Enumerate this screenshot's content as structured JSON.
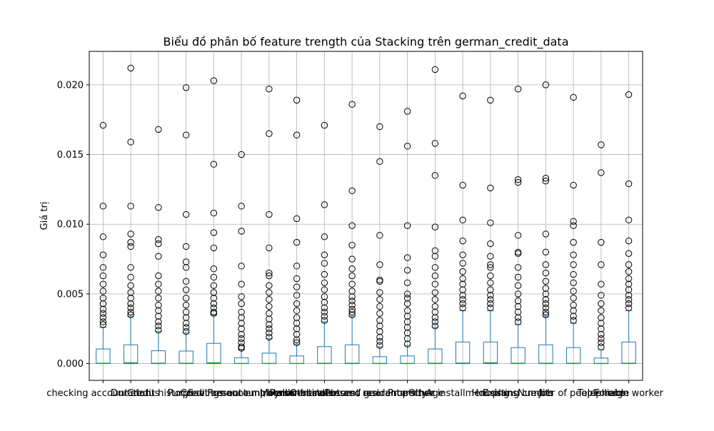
{
  "chart_data": {
    "type": "boxplot",
    "title": "Biểu đồ phân bố feature trength của Stacking trên german_credit_data",
    "xlabel": "",
    "ylabel": "Giá trị",
    "ylim": [
      -0.0012,
      0.0224
    ],
    "yticks": [
      "0.000",
      "0.005",
      "0.010",
      "0.015",
      "0.020"
    ],
    "grid": true,
    "colors": {
      "box": "#1f77b4",
      "median": "#2ca02c",
      "flier": "#000000",
      "grid": "#b0b0b0"
    },
    "categories": [
      "checking account status",
      "Duration",
      "Credit history",
      "Purpose",
      "Credit amount",
      "Savings account/bonds",
      "Present employment since",
      "Installment rate",
      "Personal status and sex",
      "Other debtors / guarantors",
      "Present residence since",
      "Property",
      "Age",
      "Other installment plans",
      "Housing",
      "Existing credits",
      "Job",
      "Number of people liable",
      "Telephone",
      "Foreign worker"
    ],
    "boxes": [
      {
        "q1": 0.0,
        "median": 3e-05,
        "q3": 0.00105,
        "whisker_low": 0.0,
        "whisker_high": 0.0026,
        "fliers": [
          0.0171,
          0.0113,
          0.0091,
          0.0078,
          0.0069,
          0.0063,
          0.0057,
          0.0052,
          0.0047,
          0.0043,
          0.0039,
          0.0036,
          0.0033,
          0.003,
          0.0028
        ]
      },
      {
        "q1": 0.0,
        "median": 6e-05,
        "q3": 0.00135,
        "whisker_low": 0.0,
        "whisker_high": 0.0034,
        "fliers": [
          0.0212,
          0.0159,
          0.0113,
          0.0093,
          0.0087,
          0.0084,
          0.0069,
          0.0062,
          0.0056,
          0.0051,
          0.0047,
          0.0043,
          0.004,
          0.0037,
          0.0035
        ]
      },
      {
        "q1": 0.0,
        "median": 3e-05,
        "q3": 0.00092,
        "whisker_low": 0.0,
        "whisker_high": 0.0023,
        "fliers": [
          0.0168,
          0.0112,
          0.0089,
          0.0086,
          0.0077,
          0.0063,
          0.0057,
          0.0052,
          0.0047,
          0.0042,
          0.0038,
          0.0034,
          0.003,
          0.0027,
          0.0024
        ]
      },
      {
        "q1": 0.0,
        "median": 3e-05,
        "q3": 0.0009,
        "whisker_low": 0.0,
        "whisker_high": 0.0022,
        "fliers": [
          0.0198,
          0.0164,
          0.0107,
          0.0084,
          0.0073,
          0.0069,
          0.0059,
          0.0053,
          0.0047,
          0.0042,
          0.0037,
          0.0033,
          0.0029,
          0.0026,
          0.0023
        ]
      },
      {
        "q1": 0.0,
        "median": 6e-05,
        "q3": 0.00145,
        "whisker_low": 0.0,
        "whisker_high": 0.0035,
        "fliers": [
          0.0203,
          0.0143,
          0.0108,
          0.0094,
          0.0083,
          0.0068,
          0.0062,
          0.0056,
          0.0051,
          0.0047,
          0.0043,
          0.004,
          0.0037,
          0.0036
        ]
      },
      {
        "q1": 0.0,
        "median": 2e-05,
        "q3": 0.00042,
        "whisker_low": 0.0,
        "whisker_high": 0.001,
        "fliers": [
          0.015,
          0.0113,
          0.0095,
          0.007,
          0.0057,
          0.0048,
          0.0043,
          0.0037,
          0.0033,
          0.0029,
          0.0025,
          0.0021,
          0.0018,
          0.0015,
          0.0012,
          0.0011
        ]
      },
      {
        "q1": 0.0,
        "median": 2e-05,
        "q3": 0.00075,
        "whisker_low": 0.0,
        "whisker_high": 0.0018,
        "fliers": [
          0.0197,
          0.0165,
          0.0107,
          0.0083,
          0.0065,
          0.0063,
          0.0056,
          0.0051,
          0.0046,
          0.0041,
          0.0036,
          0.0032,
          0.0028,
          0.0025,
          0.0022,
          0.0019
        ]
      },
      {
        "q1": 0.0,
        "median": 2e-05,
        "q3": 0.00055,
        "whisker_low": 0.0,
        "whisker_high": 0.0014,
        "fliers": [
          0.0189,
          0.0164,
          0.0104,
          0.0087,
          0.007,
          0.0061,
          0.0055,
          0.0049,
          0.0043,
          0.0038,
          0.0033,
          0.0029,
          0.0025,
          0.0021,
          0.0017,
          0.0015
        ]
      },
      {
        "q1": 0.0,
        "median": 3e-05,
        "q3": 0.00122,
        "whisker_low": 0.0,
        "whisker_high": 0.003,
        "fliers": [
          0.0171,
          0.0114,
          0.0091,
          0.0078,
          0.0072,
          0.0064,
          0.0058,
          0.0053,
          0.0048,
          0.0044,
          0.004,
          0.0037,
          0.0034,
          0.0031
        ]
      },
      {
        "q1": 0.0,
        "median": 3e-05,
        "q3": 0.00135,
        "whisker_low": 0.0,
        "whisker_high": 0.0034,
        "fliers": [
          0.0186,
          0.0124,
          0.0099,
          0.0085,
          0.0075,
          0.0068,
          0.0063,
          0.0057,
          0.0052,
          0.0048,
          0.0045,
          0.0042,
          0.0039,
          0.0037,
          0.0035
        ]
      },
      {
        "q1": 0.0,
        "median": 2e-05,
        "q3": 0.0005,
        "whisker_low": 0.0,
        "whisker_high": 0.0012,
        "fliers": [
          0.017,
          0.0145,
          0.0092,
          0.0071,
          0.006,
          0.0059,
          0.0051,
          0.0046,
          0.0041,
          0.0036,
          0.0031,
          0.0027,
          0.0023,
          0.0019,
          0.0016,
          0.0013
        ]
      },
      {
        "q1": 0.0,
        "median": 2e-05,
        "q3": 0.00055,
        "whisker_low": 0.0,
        "whisker_high": 0.0013,
        "fliers": [
          0.0181,
          0.0156,
          0.0099,
          0.0076,
          0.0067,
          0.0058,
          0.005,
          0.0047,
          0.0043,
          0.0038,
          0.0034,
          0.003,
          0.0026,
          0.0022,
          0.0018,
          0.0014
        ]
      },
      {
        "q1": 0.0,
        "median": 3e-05,
        "q3": 0.00105,
        "whisker_low": 0.0,
        "whisker_high": 0.0026,
        "fliers": [
          0.0211,
          0.0158,
          0.0135,
          0.0098,
          0.0081,
          0.0077,
          0.0069,
          0.0063,
          0.0057,
          0.0051,
          0.0046,
          0.0041,
          0.0037,
          0.0033,
          0.003,
          0.0027
        ]
      },
      {
        "q1": 0.0,
        "median": 4e-05,
        "q3": 0.00155,
        "whisker_low": 0.0,
        "whisker_high": 0.0038,
        "fliers": [
          0.0192,
          0.0128,
          0.0103,
          0.0088,
          0.0078,
          0.0072,
          0.0066,
          0.0061,
          0.0057,
          0.0053,
          0.0049,
          0.0046,
          0.0043,
          0.004
        ]
      },
      {
        "q1": 0.0,
        "median": 6e-05,
        "q3": 0.00155,
        "whisker_low": 0.0,
        "whisker_high": 0.0038,
        "fliers": [
          0.0189,
          0.0126,
          0.0101,
          0.0086,
          0.0077,
          0.0071,
          0.0069,
          0.0063,
          0.0058,
          0.0053,
          0.0049,
          0.0046,
          0.0043,
          0.004
        ]
      },
      {
        "q1": 0.0,
        "median": 3e-05,
        "q3": 0.00115,
        "whisker_low": 0.0,
        "whisker_high": 0.0028,
        "fliers": [
          0.0197,
          0.0132,
          0.013,
          0.0092,
          0.008,
          0.0079,
          0.0069,
          0.0062,
          0.0056,
          0.005,
          0.0045,
          0.0041,
          0.0037,
          0.0033,
          0.003
        ]
      },
      {
        "q1": 0.0,
        "median": 3e-05,
        "q3": 0.00135,
        "whisker_low": 0.0,
        "whisker_high": 0.0034,
        "fliers": [
          0.02,
          0.0133,
          0.0131,
          0.0093,
          0.008,
          0.0071,
          0.0065,
          0.0059,
          0.0054,
          0.005,
          0.0046,
          0.0043,
          0.004,
          0.0037,
          0.0035
        ]
      },
      {
        "q1": 0.0,
        "median": 3e-05,
        "q3": 0.00115,
        "whisker_low": 0.0,
        "whisker_high": 0.0029,
        "fliers": [
          0.0191,
          0.0128,
          0.0102,
          0.0099,
          0.0087,
          0.0078,
          0.0071,
          0.0064,
          0.0058,
          0.0052,
          0.0047,
          0.0042,
          0.0038,
          0.0034,
          0.0031
        ]
      },
      {
        "q1": 0.0,
        "median": 2e-05,
        "q3": 0.0004,
        "whisker_low": 0.0,
        "whisker_high": 0.001,
        "fliers": [
          0.0157,
          0.0137,
          0.0087,
          0.0071,
          0.0057,
          0.0049,
          0.0043,
          0.0038,
          0.0033,
          0.0029,
          0.0025,
          0.0021,
          0.0018,
          0.0015,
          0.0012
        ]
      },
      {
        "q1": 0.0,
        "median": 3e-05,
        "q3": 0.00155,
        "whisker_low": 0.0,
        "whisker_high": 0.0038,
        "fliers": [
          0.0193,
          0.0129,
          0.0103,
          0.0088,
          0.0079,
          0.0071,
          0.0066,
          0.0061,
          0.0057,
          0.0053,
          0.0049,
          0.0046,
          0.0043,
          0.004
        ]
      }
    ]
  }
}
